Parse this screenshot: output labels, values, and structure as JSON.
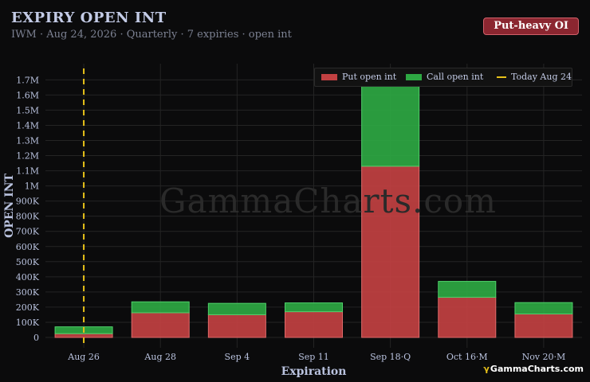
{
  "header": {
    "title": "EXPIRY OPEN INT",
    "subtitle": "IWM · Aug 24, 2026 · Quarterly · 7 expiries · open int",
    "badge": "Put-heavy OI"
  },
  "watermark": "GammaCharts.com",
  "brand": {
    "text": "GammaCharts.com",
    "icon": "γ"
  },
  "legend": {
    "put": "Put open int",
    "call": "Call open int",
    "today": "Today Aug 24"
  },
  "colors": {
    "put": "#c24142",
    "call": "#2ea843",
    "today": "#e8c21a",
    "badge": "#8b2630"
  },
  "chart_data": {
    "type": "bar",
    "stacked": true,
    "title": "EXPIRY OPEN INT",
    "xlabel": "Expiration",
    "ylabel": "OPEN INT",
    "categories": [
      "Aug 26",
      "Aug 28",
      "Sep 4",
      "Sep 11",
      "Sep 18·Q",
      "Oct 16·M",
      "Nov 20·M"
    ],
    "series": [
      {
        "name": "Put open int",
        "values": [
          25000,
          163000,
          150000,
          170000,
          1130000,
          265000,
          155000
        ]
      },
      {
        "name": "Call open int",
        "values": [
          45000,
          72000,
          75000,
          58000,
          570000,
          105000,
          75000
        ]
      }
    ],
    "reference_line": {
      "label": "Today Aug 24",
      "position": "left of Aug 26"
    },
    "ylim": [
      0,
      1770000
    ],
    "yticks": [
      0,
      100000,
      200000,
      300000,
      400000,
      500000,
      600000,
      700000,
      800000,
      900000,
      1000000,
      1100000,
      1200000,
      1300000,
      1400000,
      1500000,
      1600000,
      1700000
    ],
    "ytick_labels": [
      "0",
      "100K",
      "200K",
      "300K",
      "400K",
      "500K",
      "600K",
      "700K",
      "800K",
      "900K",
      "1M",
      "1.1M",
      "1.2M",
      "1.3M",
      "1.4M",
      "1.5M",
      "1.6M",
      "1.7M"
    ],
    "grid": true,
    "legend_position": "top-right"
  }
}
